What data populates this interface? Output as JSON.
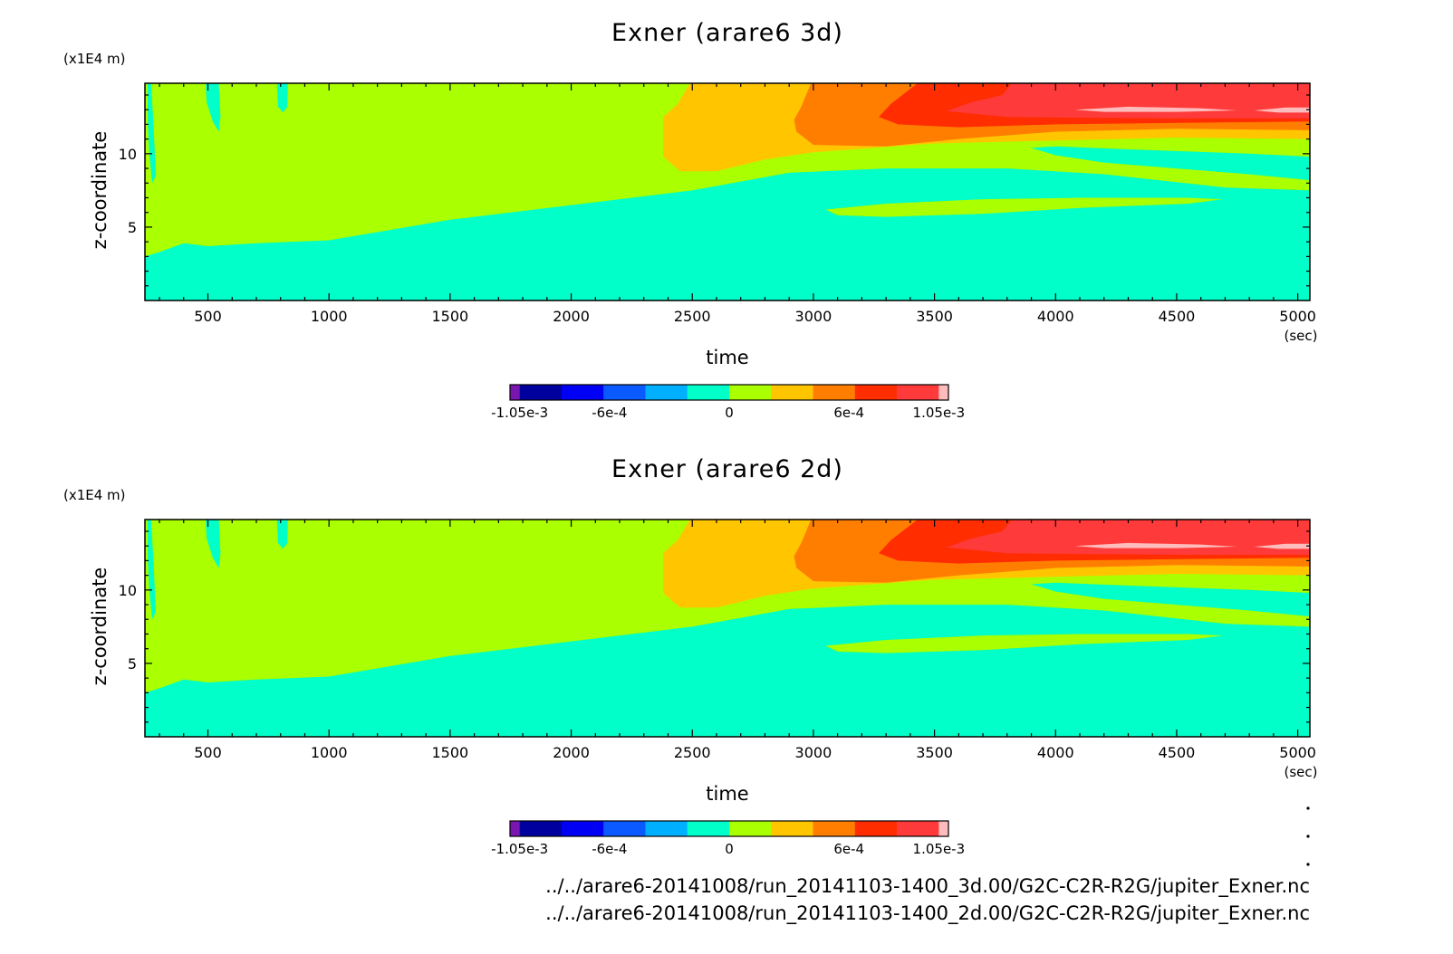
{
  "chart_data": [
    {
      "type": "heatmap",
      "title": "Exner (arare6 3d)",
      "xlabel": "time",
      "xunit": "(sec)",
      "ylabel": "z-coordinate",
      "yunit": "(x1E4 m)",
      "xlim": [
        240,
        5050
      ],
      "ylim": [
        0,
        14.8
      ],
      "x_ticks": [
        500,
        1000,
        1500,
        2000,
        2500,
        3000,
        3500,
        4000,
        4500,
        5000
      ],
      "y_ticks": [
        5,
        10
      ],
      "colorbar": {
        "levels": [
          "-1.05e-3",
          "-6e-4",
          "0",
          "6e-4",
          "1.05e-3"
        ],
        "level_values": [
          -0.00105,
          -0.0006,
          0,
          0.0006,
          0.00105
        ],
        "colors": [
          "#7a16b0",
          "#00009f",
          "#0000f4",
          "#0a5aff",
          "#00b0ff",
          "#00ffc9",
          "#aaff00",
          "#ffc600",
          "#ff7e00",
          "#ff2d00",
          "#ff3a3a",
          "#ffbcbc"
        ]
      }
    },
    {
      "type": "heatmap",
      "title": "Exner (arare6 2d)",
      "xlabel": "time",
      "xunit": "(sec)",
      "ylabel": "z-coordinate",
      "yunit": "(x1E4 m)",
      "xlim": [
        240,
        5050
      ],
      "ylim": [
        0,
        14.8
      ],
      "x_ticks": [
        500,
        1000,
        1500,
        2000,
        2500,
        3000,
        3500,
        4000,
        4500,
        5000
      ],
      "y_ticks": [
        5,
        10
      ],
      "colorbar": {
        "levels": [
          "-1.05e-3",
          "-6e-4",
          "0",
          "6e-4",
          "1.05e-3"
        ],
        "level_values": [
          -0.00105,
          -0.0006,
          0,
          0.0006,
          0.00105
        ],
        "colors": [
          "#7a16b0",
          "#00009f",
          "#0000f4",
          "#0a5aff",
          "#00b0ff",
          "#00ffc9",
          "#aaff00",
          "#ffc600",
          "#ff7e00",
          "#ff2d00",
          "#ff3a3a",
          "#ffbcbc"
        ]
      }
    }
  ],
  "footer": {
    "path_3d": "../../arare6-20141008/run_20141103-1400_3d.00/G2C-C2R-R2G/jupiter_Exner.nc",
    "path_2d": "../../arare6-20141008/run_20141103-1400_2d.00/G2C-C2R-R2G/jupiter_Exner.nc"
  }
}
